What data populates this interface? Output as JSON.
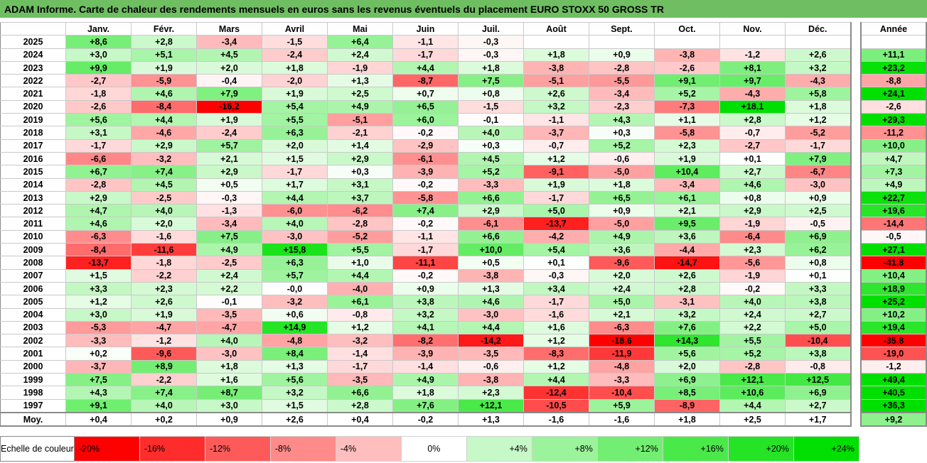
{
  "title": "ADAM Informe. Carte de chaleur des rendements mensuels en euros sans les revenus éventuels du placement EURO STOXX 50 GROSS TR",
  "chart_data": {
    "type": "heatmap",
    "months": [
      "Janv.",
      "Févr.",
      "Mars",
      "Avril",
      "Mai",
      "Juin",
      "Juil.",
      "Août",
      "Sept.",
      "Oct.",
      "Nov.",
      "Déc."
    ],
    "year_header": "Année",
    "avg_label": "Moy.",
    "rows": [
      {
        "year": "2025",
        "m": [
          "+8,6",
          "+2,8",
          "-3,4",
          "-1,5",
          "+6,4",
          "-1,1",
          "-0,3",
          "",
          "",
          "",
          "",
          ""
        ],
        "y": ""
      },
      {
        "year": "2024",
        "m": [
          "+3,0",
          "+5,1",
          "+4,5",
          "-2,4",
          "+2,4",
          "-1,7",
          "-0,3",
          "+1,8",
          "+0,9",
          "-3,8",
          "-1,2",
          "+2,6"
        ],
        "y": "+11,1"
      },
      {
        "year": "2023",
        "m": [
          "+9,9",
          "+1,9",
          "+2,0",
          "+1,8",
          "-1,9",
          "+4,4",
          "+1,8",
          "-3,8",
          "-2,8",
          "-2,6",
          "+8,1",
          "+3,2"
        ],
        "y": "+23,2"
      },
      {
        "year": "2022",
        "m": [
          "-2,7",
          "-5,9",
          "-0,4",
          "-2,0",
          "+1,3",
          "-8,7",
          "+7,5",
          "-5,1",
          "-5,5",
          "+9,1",
          "+9,7",
          "-4,3"
        ],
        "y": "-8,8"
      },
      {
        "year": "2021",
        "m": [
          "-1,8",
          "+4,6",
          "+7,9",
          "+1,9",
          "+2,5",
          "+0,7",
          "+0,8",
          "+2,6",
          "-3,4",
          "+5,2",
          "-4,3",
          "+5,8"
        ],
        "y": "+24,1"
      },
      {
        "year": "2020",
        "m": [
          "-2,6",
          "-8,4",
          "-16,2",
          "+5,4",
          "+4,9",
          "+6,5",
          "-1,5",
          "+3,2",
          "-2,3",
          "-7,3",
          "+18,1",
          "+1,8"
        ],
        "y": "-2,6"
      },
      {
        "year": "2019",
        "m": [
          "+5,6",
          "+4,4",
          "+1,9",
          "+5,5",
          "-5,1",
          "+6,0",
          "-0,1",
          "-1,1",
          "+4,3",
          "+1,1",
          "+2,8",
          "+1,2"
        ],
        "y": "+29,3"
      },
      {
        "year": "2018",
        "m": [
          "+3,1",
          "-4,6",
          "-2,4",
          "+6,3",
          "-2,1",
          "-0,2",
          "+4,0",
          "-3,7",
          "+0,3",
          "-5,8",
          "-0,7",
          "-5,2"
        ],
        "y": "-11,2"
      },
      {
        "year": "2017",
        "m": [
          "-1,7",
          "+2,9",
          "+5,7",
          "+2,0",
          "+1,4",
          "-2,9",
          "+0,3",
          "-0,7",
          "+5,2",
          "+2,3",
          "-2,7",
          "-1,7"
        ],
        "y": "+10,0"
      },
      {
        "year": "2016",
        "m": [
          "-6,6",
          "-3,2",
          "+2,1",
          "+1,5",
          "+2,9",
          "-6,1",
          "+4,5",
          "+1,2",
          "-0,6",
          "+1,9",
          "+0,1",
          "+7,9"
        ],
        "y": "+4,7"
      },
      {
        "year": "2015",
        "m": [
          "+6,7",
          "+7,4",
          "+2,9",
          "-1,7",
          "+0,3",
          "-3,9",
          "+5,2",
          "-9,1",
          "-5,0",
          "+10,4",
          "+2,7",
          "-6,7"
        ],
        "y": "+7,3"
      },
      {
        "year": "2014",
        "m": [
          "-2,8",
          "+4,5",
          "+0,5",
          "+1,7",
          "+3,1",
          "-0,2",
          "-3,3",
          "+1,9",
          "+1,8",
          "-3,4",
          "+4,6",
          "-3,0"
        ],
        "y": "+4,9"
      },
      {
        "year": "2013",
        "m": [
          "+2,9",
          "-2,5",
          "-0,3",
          "+4,4",
          "+3,7",
          "-5,8",
          "+6,6",
          "-1,7",
          "+6,5",
          "+6,1",
          "+0,8",
          "+0,9"
        ],
        "y": "+22,7"
      },
      {
        "year": "2012",
        "m": [
          "+4,7",
          "+4,0",
          "-1,3",
          "-6,0",
          "-6,2",
          "+7,4",
          "+2,9",
          "+5,0",
          "+0,9",
          "+2,1",
          "+2,9",
          "+2,5"
        ],
        "y": "+19,6"
      },
      {
        "year": "2011",
        "m": [
          "+4,6",
          "+2,0",
          "-3,4",
          "+4,0",
          "-2,8",
          "-0,2",
          "-6,1",
          "-13,7",
          "-5,0",
          "+9,5",
          "-1,9",
          "-0,5"
        ],
        "y": "-14,4"
      },
      {
        "year": "2010",
        "m": [
          "-6,3",
          "-1,6",
          "+7,5",
          "-3,0",
          "-5,2",
          "-1,1",
          "+6,6",
          "-4,2",
          "+4,9",
          "+3,6",
          "-6,4",
          "+6,9"
        ],
        "y": "-0,5"
      },
      {
        "year": "2009",
        "m": [
          "-8,4",
          "-11,6",
          "+4,9",
          "+15,8",
          "+5,5",
          "-1,7",
          "+10,0",
          "+5,4",
          "+3,6",
          "-4,4",
          "+2,3",
          "+6,2"
        ],
        "y": "+27,1"
      },
      {
        "year": "2008",
        "m": [
          "-13,7",
          "-1,8",
          "-2,5",
          "+6,3",
          "+1,0",
          "-11,1",
          "+0,5",
          "+0,1",
          "-9,6",
          "-14,7",
          "-5,6",
          "+0,8"
        ],
        "y": "-41,8"
      },
      {
        "year": "2007",
        "m": [
          "+1,5",
          "-2,2",
          "+2,4",
          "+5,7",
          "+4,4",
          "-0,2",
          "-3,8",
          "-0,3",
          "+2,0",
          "+2,6",
          "-1,9",
          "+0,1"
        ],
        "y": "+10,4"
      },
      {
        "year": "2006",
        "m": [
          "+3,3",
          "+2,3",
          "+2,2",
          "-0,0",
          "-4,0",
          "+0,9",
          "+1,3",
          "+3,4",
          "+2,4",
          "+2,8",
          "-0,2",
          "+3,3"
        ],
        "y": "+18,9"
      },
      {
        "year": "2005",
        "m": [
          "+1,2",
          "+2,6",
          "-0,1",
          "-3,2",
          "+6,1",
          "+3,8",
          "+4,6",
          "-1,7",
          "+5,0",
          "-3,1",
          "+4,0",
          "+3,8"
        ],
        "y": "+25,2"
      },
      {
        "year": "2004",
        "m": [
          "+3,0",
          "+1,9",
          "-3,5",
          "+0,6",
          "-0,8",
          "+3,2",
          "-3,0",
          "-1,6",
          "+2,1",
          "+3,2",
          "+2,4",
          "+2,7"
        ],
        "y": "+10,2"
      },
      {
        "year": "2003",
        "m": [
          "-5,3",
          "-4,7",
          "-4,7",
          "+14,9",
          "+1,2",
          "+4,1",
          "+4,4",
          "+1,6",
          "-6,3",
          "+7,6",
          "+2,2",
          "+5,0"
        ],
        "y": "+19,4"
      },
      {
        "year": "2002",
        "m": [
          "-3,3",
          "-1,2",
          "+4,0",
          "-4,8",
          "-3,2",
          "-8,2",
          "-14,2",
          "+1,2",
          "-18,6",
          "+14,3",
          "+5,5",
          "-10,4"
        ],
        "y": "-35,8"
      },
      {
        "year": "2001",
        "m": [
          "+0,2",
          "-9,6",
          "-3,0",
          "+8,4",
          "-1,4",
          "-3,9",
          "-3,5",
          "-8,3",
          "-11,9",
          "+5,6",
          "+5,2",
          "+3,8"
        ],
        "y": "-19,0"
      },
      {
        "year": "2000",
        "m": [
          "-3,7",
          "+8,9",
          "+1,8",
          "+1,3",
          "-1,7",
          "-1,4",
          "-0,6",
          "+1,2",
          "-4,8",
          "+2,0",
          "-2,8",
          "-0,8"
        ],
        "y": "-1,2"
      },
      {
        "year": "1999",
        "m": [
          "+7,5",
          "-2,2",
          "+1,6",
          "+5,6",
          "-3,5",
          "+4,9",
          "-3,8",
          "+4,4",
          "-3,3",
          "+6,9",
          "+12,1",
          "+12,5"
        ],
        "y": "+49,4"
      },
      {
        "year": "1998",
        "m": [
          "+4,3",
          "+7,4",
          "+8,7",
          "+3,2",
          "+6,6",
          "+1,8",
          "+2,3",
          "-12,4",
          "-10,4",
          "+8,5",
          "+10,6",
          "+6,9"
        ],
        "y": "+40,5"
      },
      {
        "year": "1997",
        "m": [
          "+9,1",
          "+4,0",
          "+3,0",
          "+1,5",
          "+2,8",
          "+7,6",
          "+12,1",
          "-10,5",
          "+5,9",
          "-8,9",
          "+4,4",
          "+2,7"
        ],
        "y": "+36,3"
      }
    ],
    "avg": {
      "m": [
        "+0,4",
        "+0,2",
        "+0,9",
        "+2,6",
        "+0,4",
        "-0,2",
        "+1,3",
        "-1,6",
        "-1,6",
        "+1,8",
        "+2,5",
        "+1,7"
      ],
      "y": "+9,2"
    },
    "scale_label": "Echelle de couleur",
    "scale": [
      {
        "label": "-20%",
        "v": -20,
        "align": "left"
      },
      {
        "label": "-16%",
        "v": -16,
        "align": "left"
      },
      {
        "label": "-12%",
        "v": -12,
        "align": "left"
      },
      {
        "label": "-8%",
        "v": -8,
        "align": "left"
      },
      {
        "label": "-4%",
        "v": -4,
        "align": "left"
      },
      {
        "label": "0%",
        "v": 0,
        "align": "center"
      },
      {
        "label": "+4%",
        "v": 4,
        "align": "right"
      },
      {
        "label": "+8%",
        "v": 8,
        "align": "right"
      },
      {
        "label": "+12%",
        "v": 12,
        "align": "right"
      },
      {
        "label": "+16%",
        "v": 16,
        "align": "right"
      },
      {
        "label": "+20%",
        "v": 20,
        "align": "right"
      },
      {
        "label": "+24%",
        "v": 24,
        "align": "right"
      }
    ],
    "colors": {
      "neg_max": "#ff0000",
      "pos_max": "#00e000",
      "zero": "#ffffff"
    }
  }
}
